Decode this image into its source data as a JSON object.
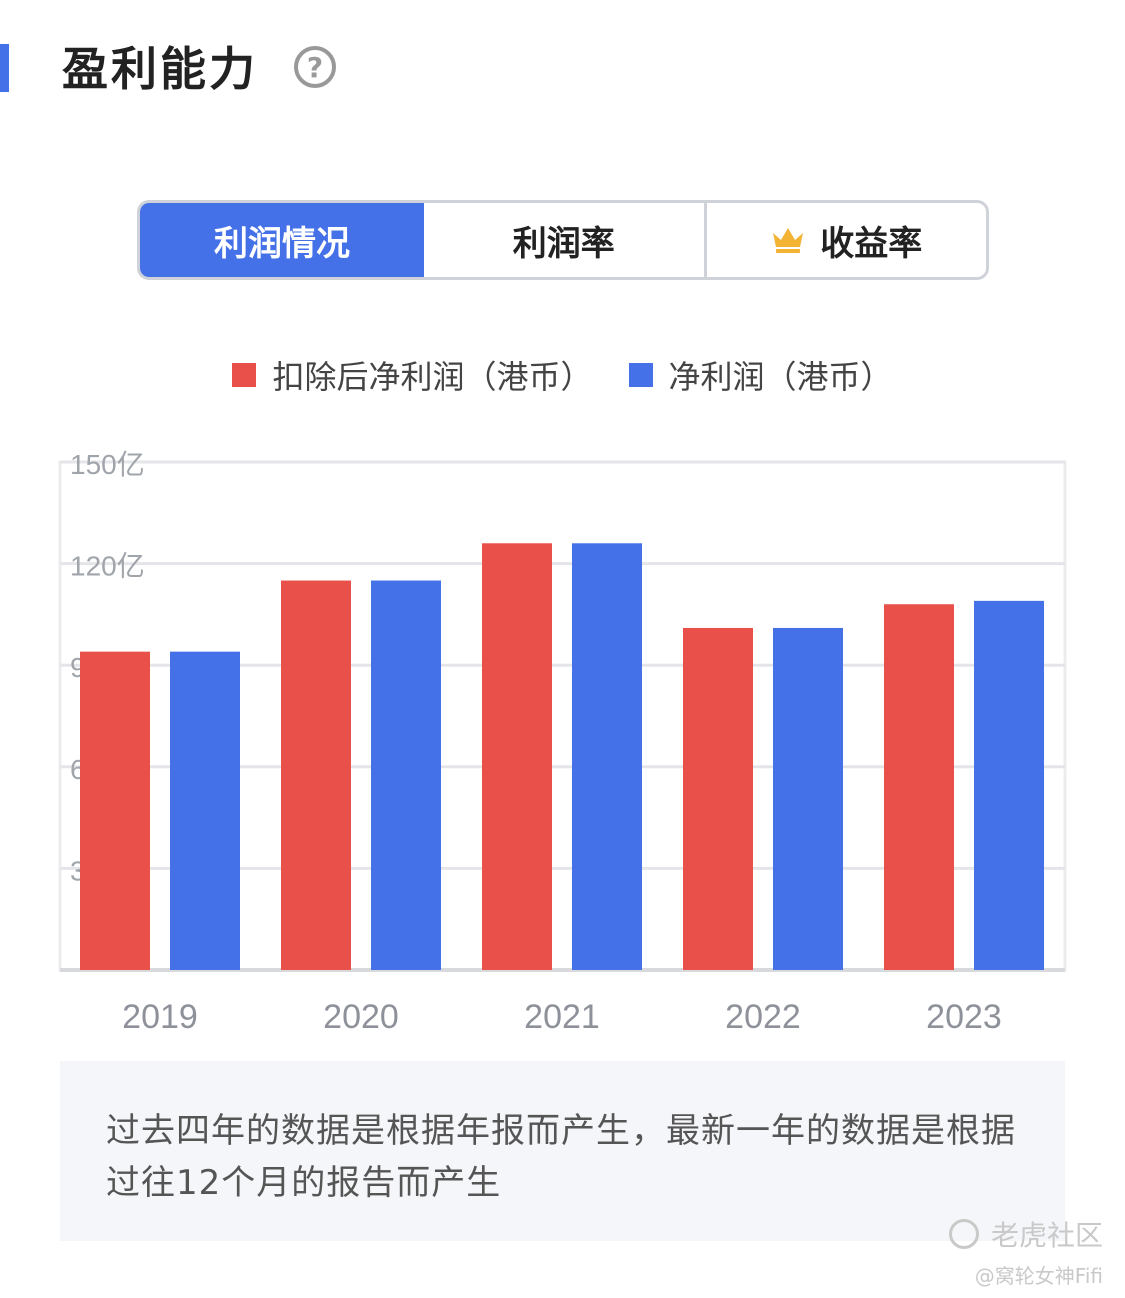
{
  "header": {
    "title": "盈利能力",
    "help_icon": "?"
  },
  "tabs": [
    {
      "label": "利润情况",
      "active": true
    },
    {
      "label": "利润率",
      "active": false
    },
    {
      "label": "收益率",
      "active": false,
      "icon": "crown-icon"
    }
  ],
  "colors": {
    "accent": "#4470e8",
    "series_red": "#e9504a",
    "series_blue": "#4470e8"
  },
  "chart_data": {
    "type": "bar",
    "categories": [
      "2019",
      "2020",
      "2021",
      "2022",
      "2023"
    ],
    "series": [
      {
        "name": "扣除后净利润（港币）",
        "color": "#e9504a",
        "values": [
          94,
          115,
          126,
          101,
          108
        ]
      },
      {
        "name": "净利润（港币）",
        "color": "#4470e8",
        "values": [
          94,
          115,
          126,
          101,
          109
        ]
      }
    ],
    "y_ticks": [
      "150亿",
      "120亿",
      "9",
      "6",
      "3"
    ],
    "ylim": [
      0,
      150
    ],
    "grid": true,
    "legend": "top"
  },
  "note": "过去四年的数据是根据年报而产生，最新一年的数据是根据过往12个月的报告而产生",
  "watermark": {
    "brand": "老虎社区",
    "user": "@窝轮女神Fifi"
  }
}
